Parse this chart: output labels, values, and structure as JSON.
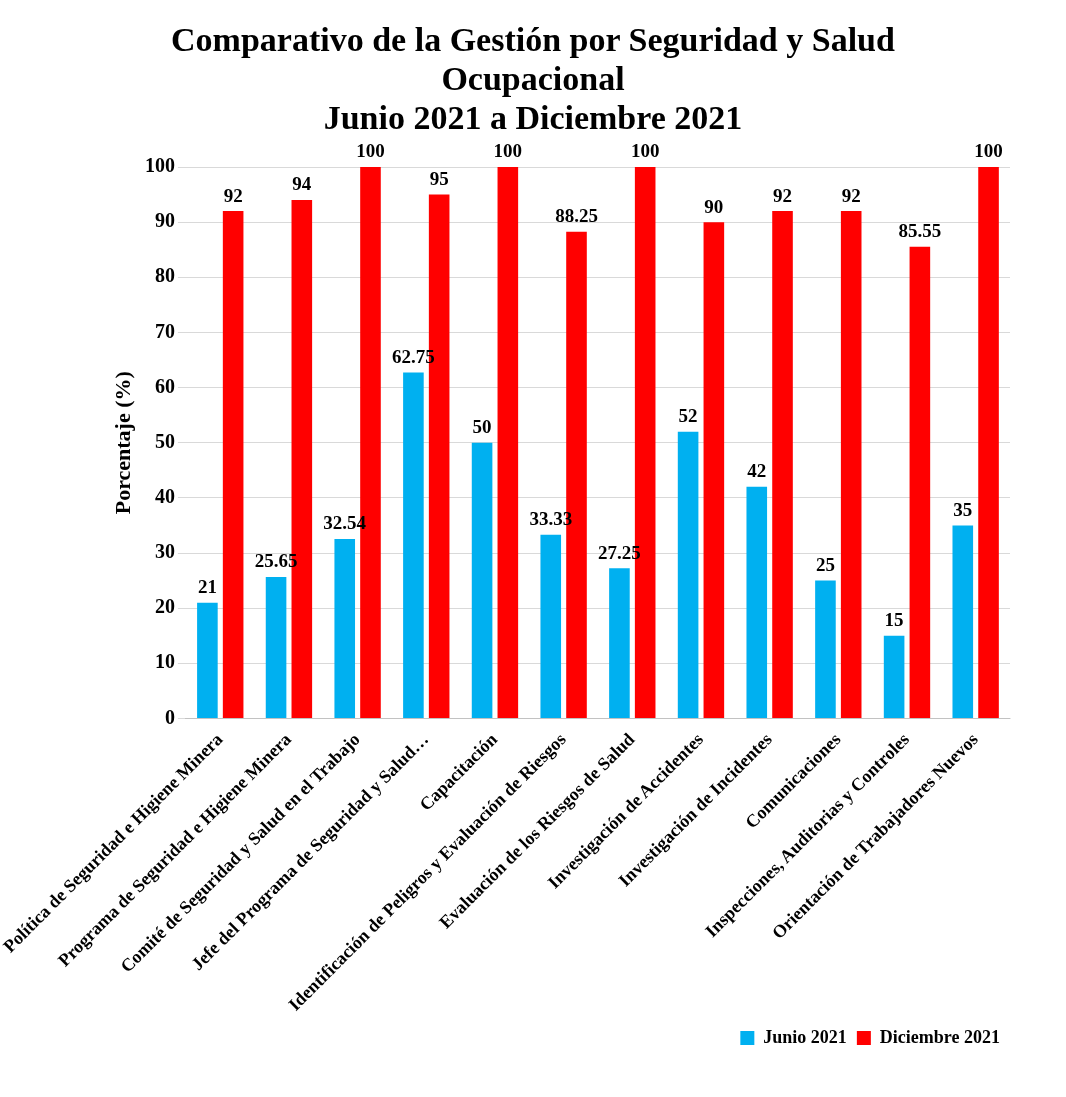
{
  "chart_data": {
    "type": "bar",
    "title": "Comparativo de la Gestión por Seguridad y Salud Ocupacional",
    "subtitle": "Junio 2021 a Diciembre 2021",
    "ylabel": "Porcentaje (%)",
    "categories": [
      "Política de Seguridad e Higiene Minera",
      "Programa de Seguridad e Higiene Minera",
      "Comité de Seguridad y Salud en el Trabajo",
      "Jefe del Programa de Seguridad y Salud…",
      "Capacitación",
      "Identificación de Peligros y Evaluación de Riesgos",
      "Evaluación de los Riesgos de Salud",
      "Investigación de Accidentes",
      "Investigación de Incidentes",
      "Comunicaciones",
      "Inspecciones, Auditorias y Controles",
      "Orientación de Trabajadores Nuevos"
    ],
    "series": [
      {
        "name": "Junio 2021",
        "color": "#00b0f0",
        "values": [
          21,
          25.65,
          32.54,
          62.75,
          50,
          33.33,
          27.25,
          52,
          42,
          25,
          15,
          35
        ]
      },
      {
        "name": "Diciembre 2021",
        "color": "#ff0000",
        "values": [
          92,
          94,
          100,
          95,
          100,
          88.25,
          100,
          90,
          92,
          92,
          85.55,
          100
        ]
      }
    ],
    "ylim": [
      0,
      100
    ],
    "yticks": [
      0,
      10,
      20,
      30,
      40,
      50,
      60,
      70,
      80,
      90,
      100
    ],
    "grid": "y",
    "legend": "bottom right",
    "data_labels": true
  }
}
